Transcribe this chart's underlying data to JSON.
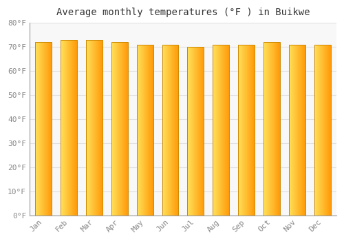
{
  "title": "Average monthly temperatures (°F ) in Buikwe",
  "months": [
    "Jan",
    "Feb",
    "Mar",
    "Apr",
    "May",
    "Jun",
    "Jul",
    "Aug",
    "Sep",
    "Oct",
    "Nov",
    "Dec"
  ],
  "values": [
    72,
    73,
    73,
    72,
    71,
    71,
    70,
    71,
    71,
    72,
    71,
    71
  ],
  "ylim": [
    0,
    80
  ],
  "yticks": [
    0,
    10,
    20,
    30,
    40,
    50,
    60,
    70,
    80
  ],
  "bar_color_left": "#FFD84D",
  "bar_color_right": "#FFA500",
  "bar_edge_color": "#CC8800",
  "background_color": "#FFFFFF",
  "plot_bg_color": "#F8F8F8",
  "grid_color": "#E0E0E0",
  "title_fontsize": 10,
  "tick_fontsize": 8,
  "title_color": "#333333",
  "tick_color": "#888888",
  "bar_width": 0.65
}
